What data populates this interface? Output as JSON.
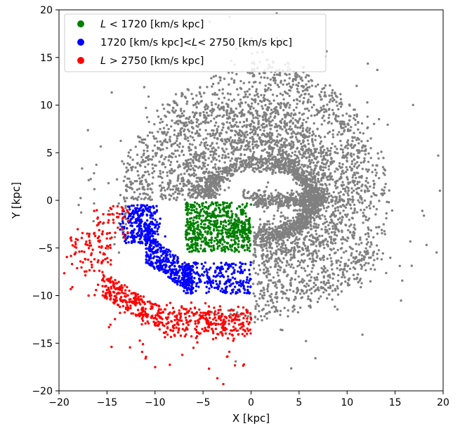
{
  "chart_data": {
    "type": "scatter",
    "xlabel": "X [kpc]",
    "ylabel": "Y [kpc]",
    "xlim": [
      -20,
      20
    ],
    "ylim": [
      -20,
      20
    ],
    "xticks": [
      -20,
      -15,
      -10,
      -5,
      0,
      5,
      10,
      15,
      20
    ],
    "yticks": [
      -20,
      -15,
      -10,
      -5,
      0,
      5,
      10,
      15,
      20
    ],
    "x_tick_labels": [
      "−20",
      "−15",
      "−10",
      "−5",
      "0",
      "5",
      "10",
      "15",
      "20"
    ],
    "y_tick_labels": [
      "−20",
      "−15",
      "−10",
      "−5",
      "0",
      "5",
      "10",
      "15",
      "20"
    ],
    "grid": false,
    "legend_position": "top-left",
    "background_series": {
      "color": "#808080",
      "label": "",
      "description_points": [
        {
          "x": -15,
          "y": 3
        },
        {
          "x": -12,
          "y": 7
        },
        {
          "x": -8,
          "y": 9
        },
        {
          "x": -3,
          "y": 12
        },
        {
          "x": 2,
          "y": 11
        },
        {
          "x": 6,
          "y": 12
        },
        {
          "x": 10,
          "y": 9
        },
        {
          "x": 13,
          "y": 6
        },
        {
          "x": 14,
          "y": 0
        },
        {
          "x": 12,
          "y": -5
        },
        {
          "x": 9,
          "y": -9
        },
        {
          "x": 4,
          "y": -13
        },
        {
          "x": 0,
          "y": -13
        },
        {
          "x": -17,
          "y": 1
        },
        {
          "x": 19.5,
          "y": 8
        },
        {
          "x": -19,
          "y": 7
        }
      ]
    },
    "series": [
      {
        "name_prefix": "L",
        "name_rel": "<",
        "name_value": "1720",
        "name_unit": "[km/s kpc]",
        "name": "L < 1720 [km/s kpc]",
        "color": "#008000",
        "x_range": [
          -7,
          0
        ],
        "y_range": [
          -5.5,
          0
        ],
        "centroid": {
          "x": -4,
          "y": -3
        }
      },
      {
        "name_prefix_value": "1720",
        "name_prefix_unit": "[km/s kpc]",
        "name_rel1": "<",
        "name_var": "L",
        "name_rel2": "<",
        "name_value": "2750",
        "name_unit": "[km/s kpc]",
        "name": "1720 [km/s kpc] < L < 2750 [km/s kpc]",
        "color": "#0000ff",
        "x_range": [
          -13,
          0
        ],
        "y_range": [
          -10,
          0
        ],
        "centroid": {
          "x": -6,
          "y": -6.5
        }
      },
      {
        "name_prefix": "L",
        "name_rel": ">",
        "name_value": "2750",
        "name_unit": "[km/s kpc]",
        "name": "L > 2750 [km/s kpc]",
        "color": "#ff0000",
        "x_range": [
          -20,
          0
        ],
        "y_range": [
          -18.5,
          -0.5
        ],
        "centroid": {
          "x": -9,
          "y": -11
        }
      }
    ]
  }
}
